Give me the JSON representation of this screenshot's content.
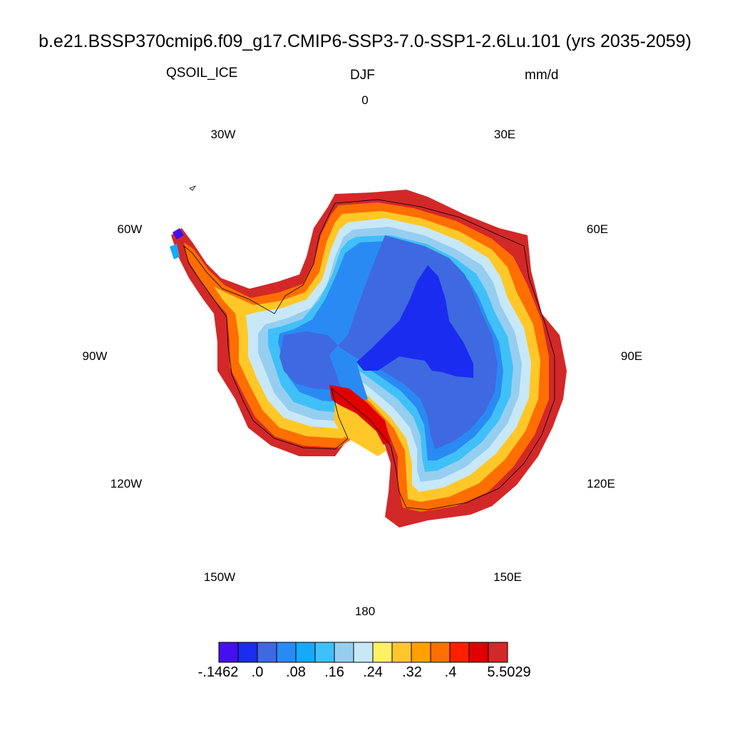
{
  "title": "b.e21.BSSP370cmip6.f09_g17.CMIP6-SSP3-7.0-SSP1-2.6Lu.101 (yrs 2035-2059)",
  "variable": "QSOIL_ICE",
  "season": "DJF",
  "units": "mm/d",
  "longitude_labels": {
    "lon_0": "0",
    "lon_30e": "30E",
    "lon_60e": "60E",
    "lon_90e": "90E",
    "lon_120e": "120E",
    "lon_150e": "150E",
    "lon_180": "180",
    "lon_150w": "150W",
    "lon_120w": "120W",
    "lon_90w": "90W",
    "lon_60w": "60W",
    "lon_30w": "30W"
  },
  "colorbar": {
    "colors": [
      "#4410f0",
      "#1a2cf0",
      "#3e69e0",
      "#2a8af4",
      "#14aaf8",
      "#40c0f8",
      "#96cef0",
      "#c8e8f8",
      "#fff064",
      "#ffc828",
      "#ffa000",
      "#ff6e00",
      "#ff1e00",
      "#e00000",
      "#d22828"
    ],
    "labels": [
      "-.1462",
      ".0",
      ".08",
      ".16",
      ".24",
      ".32",
      ".4",
      "5.5029"
    ]
  }
}
